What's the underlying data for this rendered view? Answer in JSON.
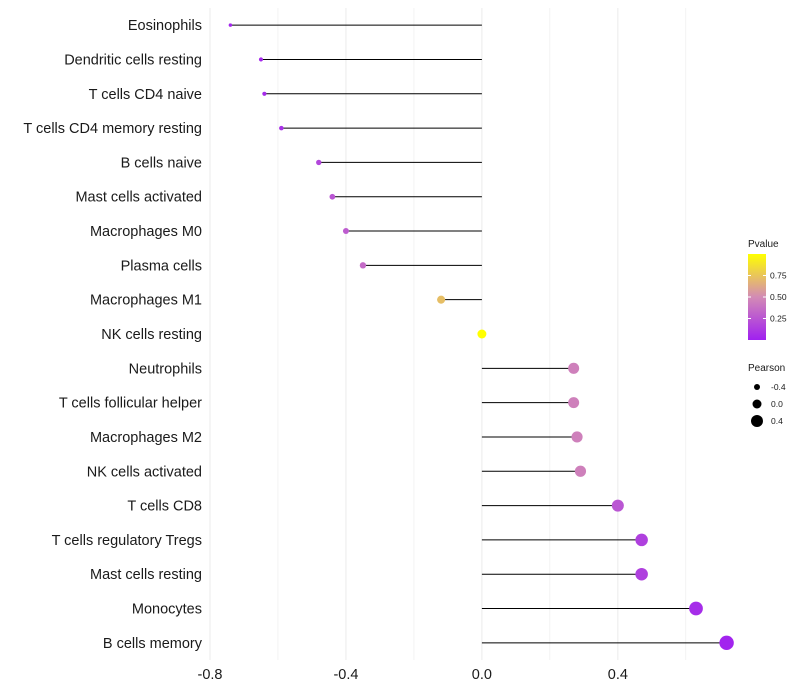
{
  "chart_data": {
    "type": "lollipop",
    "title": "",
    "xlabel": "",
    "ylabel": "",
    "xlim": [
      -0.8,
      0.73
    ],
    "xticks": [
      -0.8,
      -0.4,
      0.0,
      0.4
    ],
    "xtick_labels": [
      "-0.8",
      "-0.4",
      "0.0",
      "0.4"
    ],
    "grid": true,
    "categories": [
      "Eosinophils",
      "Dendritic cells resting",
      "T cells CD4 naive",
      "T cells CD4 memory resting",
      "B cells naive",
      "Mast cells activated",
      "Macrophages M0",
      "Plasma cells",
      "Macrophages M1",
      "NK cells resting",
      "Neutrophils",
      "T cells follicular helper",
      "Macrophages M2",
      "NK cells activated",
      "T cells CD8",
      "T cells regulatory  Tregs ",
      "Mast cells resting",
      "Monocytes",
      "B cells memory"
    ],
    "pearson": [
      -0.74,
      -0.65,
      -0.64,
      -0.59,
      -0.48,
      -0.44,
      -0.4,
      -0.35,
      -0.12,
      0.0,
      0.27,
      0.27,
      0.28,
      0.29,
      0.4,
      0.47,
      0.47,
      0.63,
      0.72
    ],
    "pvalue": [
      0.03,
      0.04,
      0.05,
      0.08,
      0.18,
      0.25,
      0.28,
      0.35,
      0.72,
      1.0,
      0.45,
      0.45,
      0.45,
      0.45,
      0.25,
      0.15,
      0.15,
      0.06,
      0.02
    ],
    "legend_pvalue": {
      "title": "Pvalue",
      "ticks": [
        0.25,
        0.5,
        0.75
      ],
      "tick_labels": [
        "0.25",
        "0.50",
        "0.75"
      ],
      "range": [
        0.0,
        1.0
      ],
      "color_low": "#a020f0",
      "color_mid": "#d38bb5",
      "color_high": "#ffff00",
      "placement": "right"
    },
    "legend_pearson": {
      "title": "Pearson",
      "values": [
        -0.4,
        0.0,
        0.4
      ],
      "labels": [
        "-0.4",
        "0.0",
        "0.4"
      ],
      "placement": "right"
    },
    "colors": {
      "stem": "#000000",
      "grid": "#ebebeb",
      "text": "#1a1a1a"
    }
  }
}
